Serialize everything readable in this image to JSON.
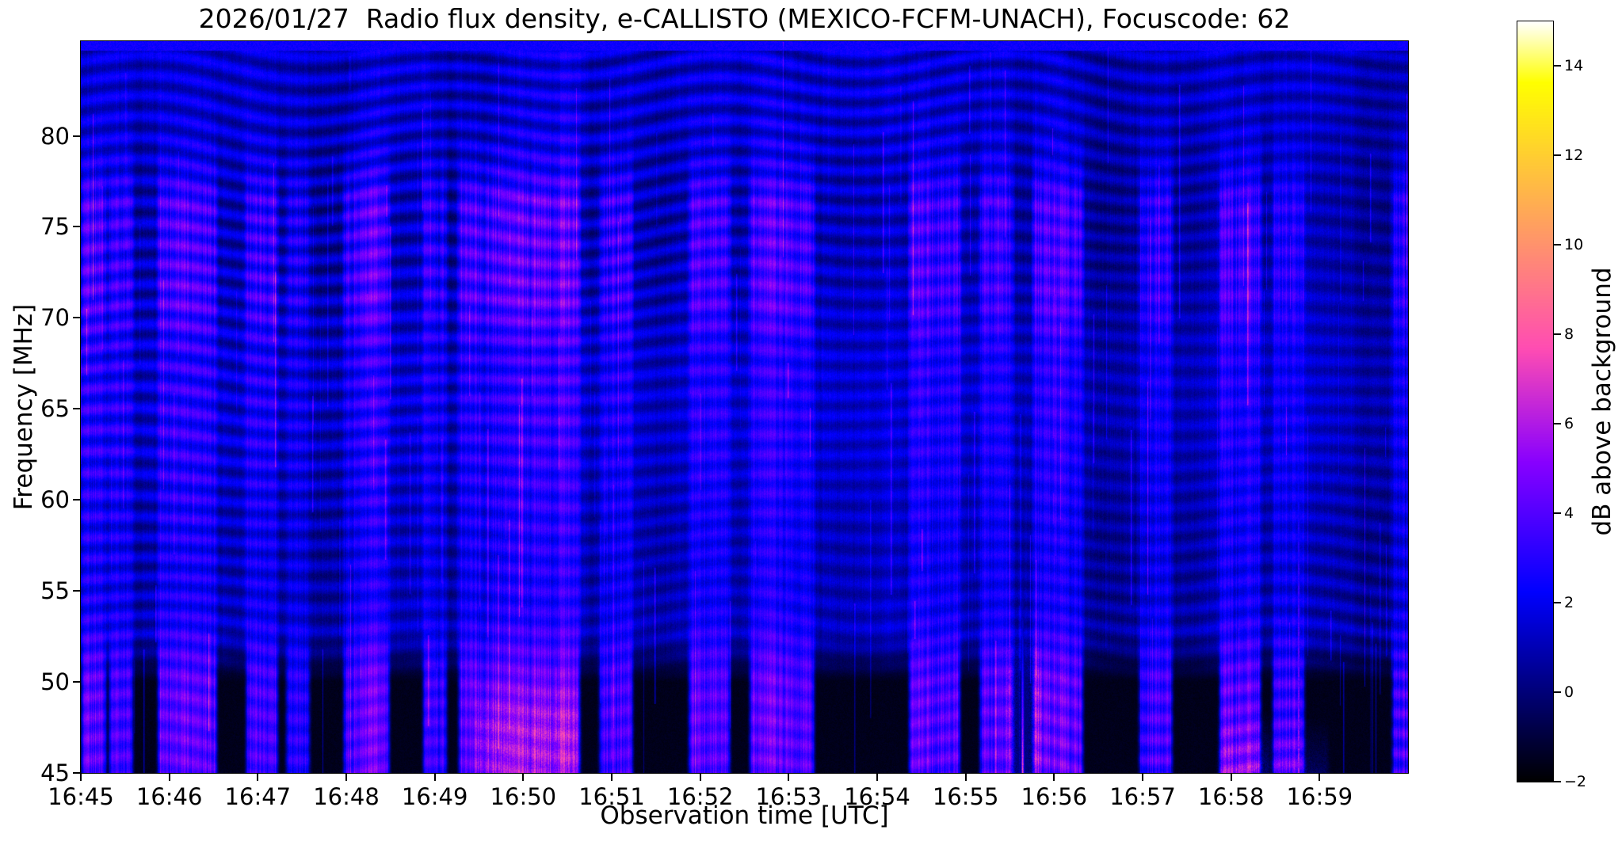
{
  "figure": {
    "title": "2026/01/27  Radio flux density, e-CALLISTO (MEXICO-FCFM-UNACH), Focuscode: 62",
    "background_color": "#ffffff",
    "text_color": "#000000"
  },
  "x_axis": {
    "label": "Observation time [UTC]",
    "ticks": [
      "16:45",
      "16:46",
      "16:47",
      "16:48",
      "16:49",
      "16:50",
      "16:51",
      "16:52",
      "16:53",
      "16:54",
      "16:55",
      "16:56",
      "16:57",
      "16:58",
      "16:59"
    ]
  },
  "y_axis": {
    "label": "Frequency [MHz]",
    "ticks": [
      "80",
      "75",
      "70",
      "65",
      "60",
      "55",
      "50",
      "45"
    ]
  },
  "colorbar": {
    "label": "dB above background",
    "tick_labels": [
      "−2",
      "0",
      "2",
      "4",
      "6",
      "8",
      "10",
      "12",
      "14"
    ]
  },
  "chart_data": {
    "type": "heatmap",
    "subtype": "solar radio spectrogram (e-CALLISTO quicklook)",
    "title": "2026/01/27  Radio flux density, e-CALLISTO (MEXICO-FCFM-UNACH), Focuscode: 62",
    "date": "2026/01/27",
    "instrument": "e-CALLISTO (MEXICO-FCFM-UNACH)",
    "focuscode": 62,
    "xlabel": "Observation time [UTC]",
    "ylabel": "Frequency [MHz]",
    "colorbar_label": "dB above background",
    "x_range_utc": [
      "16:45",
      "17:00"
    ],
    "x_tick_labels": [
      "16:45",
      "16:46",
      "16:47",
      "16:48",
      "16:49",
      "16:50",
      "16:51",
      "16:52",
      "16:53",
      "16:54",
      "16:55",
      "16:56",
      "16:57",
      "16:58",
      "16:59"
    ],
    "y_range_mhz": [
      45,
      85.2
    ],
    "y_tick_values_mhz": [
      80,
      75,
      70,
      65,
      60,
      55,
      50,
      45
    ],
    "value_range_db": [
      -2,
      15
    ],
    "colorbar_tick_values_db": [
      -2,
      0,
      2,
      4,
      6,
      8,
      10,
      12,
      14
    ],
    "colormap": "gnuplot2 (black → blue → violet → magenta → pink → orange → yellow → white)",
    "grid": false,
    "legend": null,
    "content_summary": "Quiet-Sun blue background (≈0–3 dB) crossed by undulating dark interference fringes over 45–85 MHz; many broadband bright-blue vertical columns reaching down to 45 MHz; nearly black low-signal floor below ≈53 MHz between columns; narrow magenta streaks near 16:55.6 and 16:58.8; faint pink–violet enhancement at the low-frequency edge near 16:50 and 16:58–16:59.",
    "render_model": {
      "background_level_db": 1.15,
      "fringe_amplitude_db": 0.8,
      "fringe_period_mhz": 1.13,
      "quiet_floor_below_mhz": 52.6,
      "quiet_floor_level_db": -1.75,
      "bursts_minutes_after_1645": [
        [
          0.04,
          0.25,
          2.6
        ],
        [
          0.35,
          0.55,
          2.2
        ],
        [
          0.9,
          1.5,
          2.8
        ],
        [
          1.9,
          2.19,
          2.3
        ],
        [
          2.35,
          2.55,
          1.6
        ],
        [
          3.0,
          3.45,
          2.7
        ],
        [
          3.9,
          4.1,
          2.0
        ],
        [
          4.3,
          5.6,
          3.0
        ],
        [
          5.89,
          6.2,
          2.4
        ],
        [
          6.9,
          7.3,
          2.5
        ],
        [
          7.59,
          8.25,
          2.8
        ],
        [
          9.39,
          9.9,
          2.6
        ],
        [
          10.19,
          10.5,
          2.3
        ],
        [
          10.79,
          11.29,
          2.9
        ],
        [
          11.99,
          12.3,
          2.4
        ],
        [
          12.9,
          13.3,
          2.7
        ],
        [
          13.5,
          13.79,
          2.2
        ],
        [
          14.85,
          15.0,
          2.6
        ]
      ],
      "magenta_streaks": [
        [
          10.64,
          8.5,
          57
        ],
        [
          13.76,
          7.0,
          80
        ]
      ],
      "pink_glows": [
        [
          4.5,
          5.6,
          50.5,
          1.2
        ],
        [
          10.5,
          10.8,
          53.0,
          1.6
        ],
        [
          12.9,
          13.4,
          48.5,
          1.2
        ],
        [
          13.5,
          14.05,
          48.0,
          1.0
        ]
      ]
    }
  }
}
